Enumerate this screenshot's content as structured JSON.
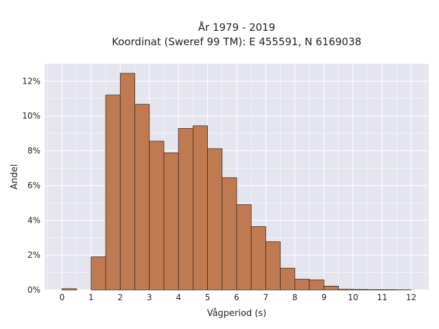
{
  "chart_data": {
    "type": "bar",
    "title_lines": [
      "År 1979 - 2019",
      "Koordinat (Sweref 99 TM): E 455591, N 6169038"
    ],
    "xlabel": "Vågperiod (s)",
    "ylabel": "Andel",
    "xlim": [
      -0.6,
      12.6
    ],
    "ylim": [
      0,
      0.13
    ],
    "xticks": [
      0,
      1,
      2,
      3,
      4,
      5,
      6,
      7,
      8,
      9,
      10,
      11,
      12
    ],
    "yticks": [
      0,
      0.02,
      0.04,
      0.06,
      0.08,
      0.1,
      0.12
    ],
    "ytick_labels": [
      "0%",
      "2%",
      "4%",
      "6%",
      "8%",
      "10%",
      "12%"
    ],
    "bin_width": 0.5,
    "bin_starts": [
      0,
      1,
      1.5,
      2,
      2.5,
      3,
      3.5,
      4,
      4.5,
      5,
      5.5,
      6,
      6.5,
      7,
      7.5,
      8,
      8.5,
      9,
      9.5,
      10,
      10.5,
      11,
      11.5
    ],
    "values": [
      0.0007,
      0.019,
      0.112,
      0.1245,
      0.1067,
      0.0855,
      0.0788,
      0.0928,
      0.0943,
      0.0812,
      0.0645,
      0.049,
      0.0364,
      0.0277,
      0.0125,
      0.0062,
      0.0058,
      0.0022,
      0.0004,
      0.0003,
      0.0002,
      0.0002,
      0.0001
    ],
    "bar_color": "#c07a52",
    "bar_edge_color": "#3a2a20",
    "plot_bg": "#e5e5ef",
    "grid": true,
    "grid_color": "#ffffff",
    "legend": "none"
  }
}
